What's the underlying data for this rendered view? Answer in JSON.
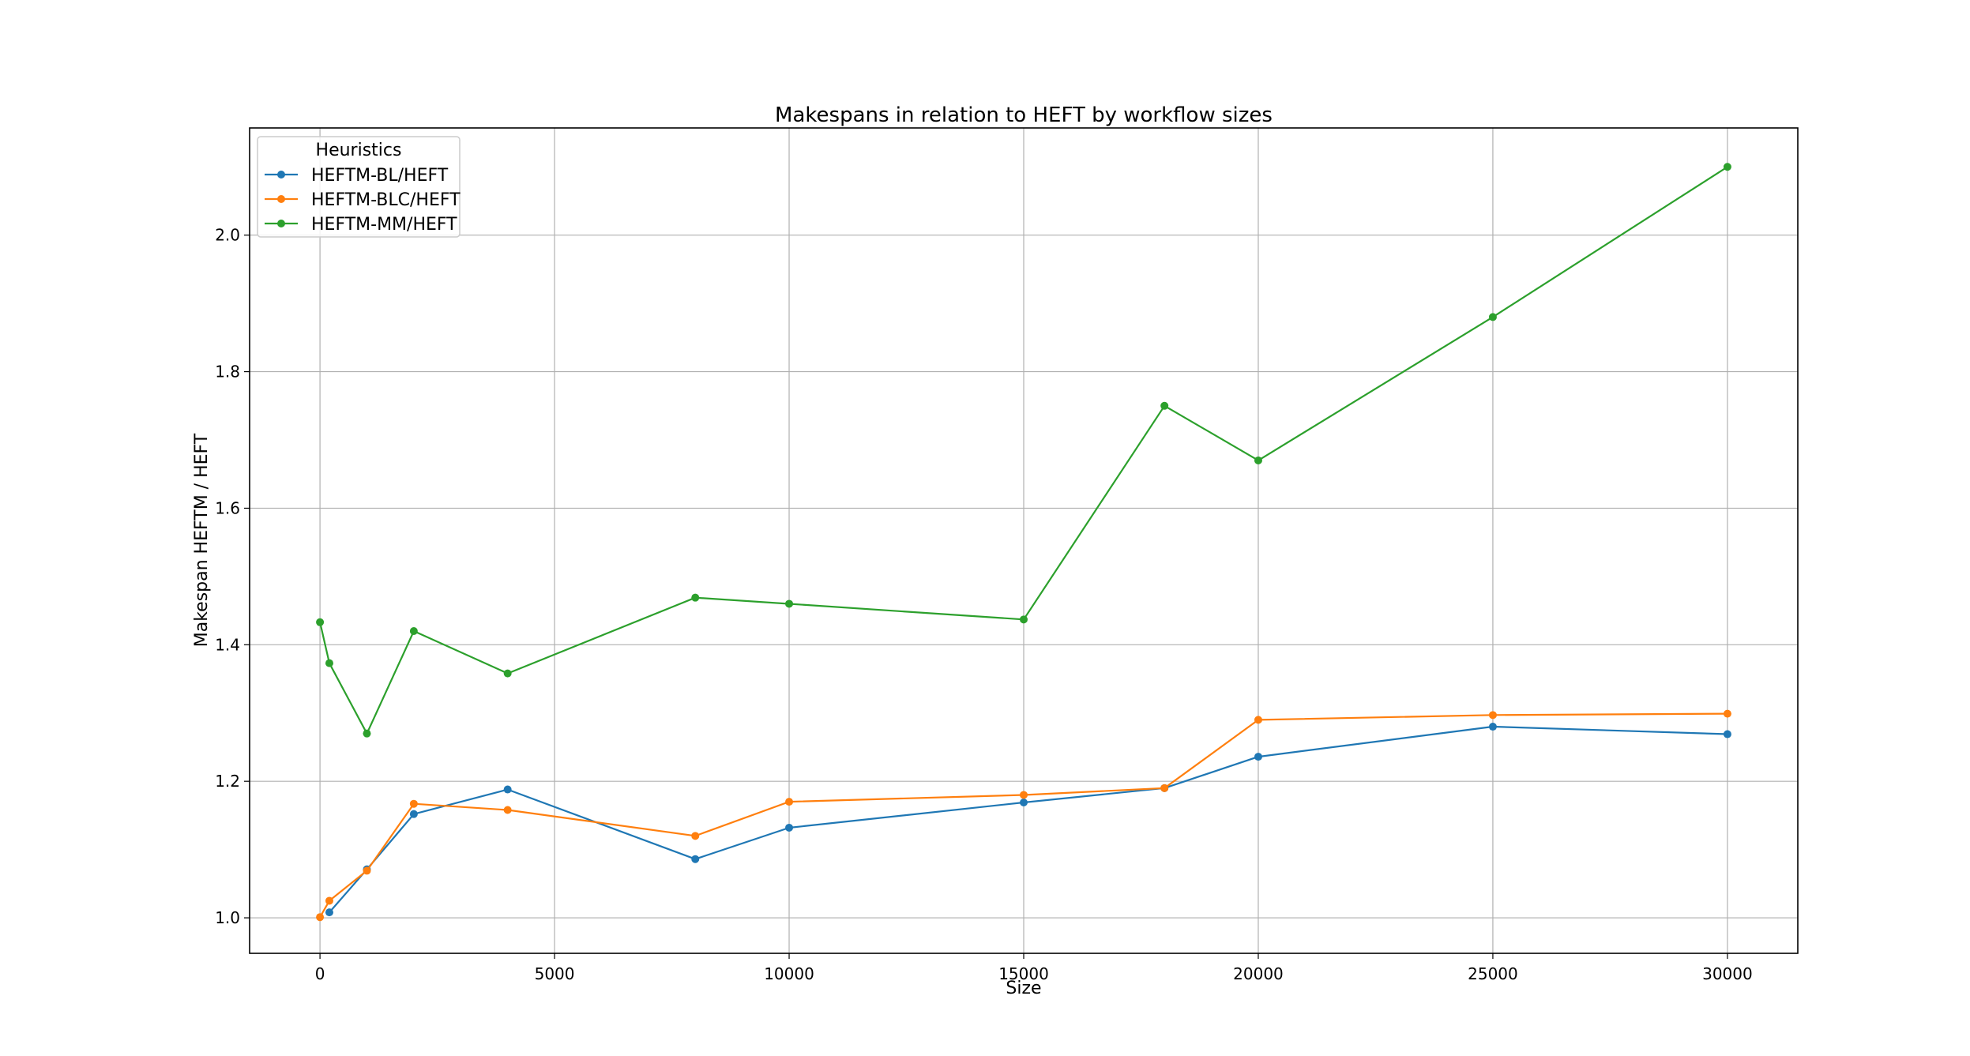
{
  "chart_data": {
    "type": "line",
    "title": "Makespans in relation to HEFT by workflow sizes",
    "xlabel": "Size",
    "ylabel": "Makespan HEFTM / HEFT",
    "xlim": [
      -1500,
      31500
    ],
    "ylim": [
      0.948,
      2.157
    ],
    "xticks": [
      0,
      5000,
      10000,
      15000,
      20000,
      25000,
      30000
    ],
    "yticks": [
      "1.0",
      "1.2",
      "1.4",
      "1.6",
      "1.8",
      "2.0"
    ],
    "grid": true,
    "legend": {
      "title": "Heuristics",
      "placement": "top-left"
    },
    "series": [
      {
        "name": "HEFTM-BL/HEFT",
        "color": "#1f77b4",
        "x": [
          200,
          1000,
          2000,
          4000,
          8000,
          10000,
          15000,
          18000,
          20000,
          25000,
          30000
        ],
        "y": [
          1.008,
          1.071,
          1.152,
          1.188,
          1.086,
          1.132,
          1.169,
          1.19,
          1.236,
          1.28,
          1.269
        ]
      },
      {
        "name": "HEFTM-BLC/HEFT",
        "color": "#ff7f0e",
        "x": [
          0,
          200,
          1000,
          2000,
          4000,
          8000,
          10000,
          15000,
          18000,
          20000,
          25000,
          30000
        ],
        "y": [
          1.001,
          1.025,
          1.069,
          1.167,
          1.158,
          1.12,
          1.17,
          1.18,
          1.19,
          1.29,
          1.297,
          1.299
        ]
      },
      {
        "name": "HEFTM-MM/HEFT",
        "color": "#2ca02c",
        "x": [
          0,
          200,
          1000,
          2000,
          4000,
          8000,
          10000,
          15000,
          18000,
          20000,
          25000,
          30000
        ],
        "y": [
          1.433,
          1.373,
          1.27,
          1.42,
          1.358,
          1.469,
          1.46,
          1.437,
          1.75,
          1.67,
          1.88,
          2.1
        ]
      }
    ]
  }
}
